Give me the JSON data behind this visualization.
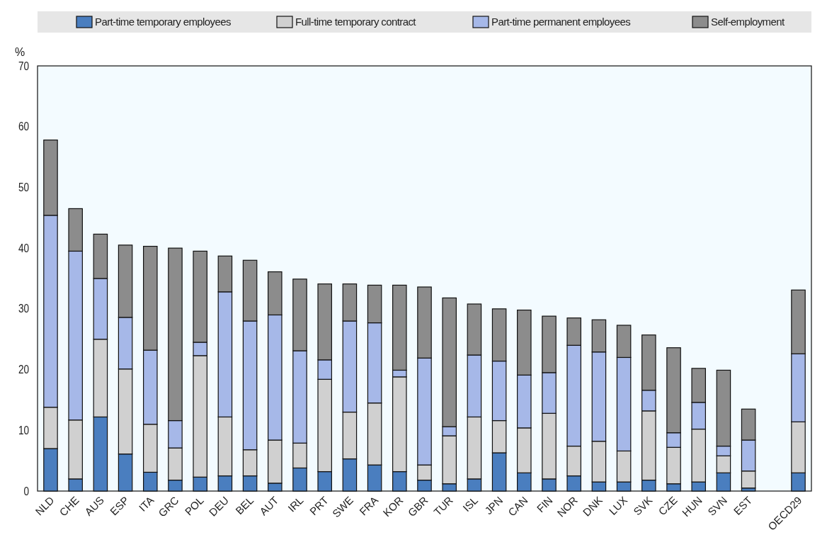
{
  "chart_data": {
    "type": "bar",
    "stacked": true,
    "ylabel": "%",
    "legend": "top",
    "grid": false,
    "categories": [
      "NLD",
      "CHE",
      "AUS",
      "ESP",
      "ITA",
      "GRC",
      "POL",
      "DEU",
      "BEL",
      "AUT",
      "IRL",
      "PRT",
      "SWE",
      "FRA",
      "KOR",
      "GBR",
      "TUR",
      "ISL",
      "JPN",
      "CAN",
      "FIN",
      "NOR",
      "DNK",
      "LUX",
      "SVK",
      "CZE",
      "HUN",
      "SVN",
      "EST",
      null,
      "OECD29"
    ],
    "ylim": [
      0,
      70
    ],
    "yticks": [
      0,
      10,
      20,
      30,
      40,
      50,
      60,
      70
    ],
    "series": [
      {
        "name": "Part-time temporary employees",
        "color": "#4a7ebf",
        "values": [
          7.0,
          2.0,
          12.2,
          6.1,
          3.1,
          1.8,
          2.3,
          2.5,
          2.5,
          1.3,
          3.8,
          3.2,
          5.3,
          4.3,
          3.2,
          1.8,
          1.2,
          2.0,
          6.3,
          3.0,
          2.0,
          2.5,
          1.5,
          1.5,
          1.8,
          1.2,
          1.5,
          3.0,
          0.5,
          null,
          3.0
        ]
      },
      {
        "name": "Full-time temporary contract",
        "color": "#d0d0d0",
        "values": [
          6.8,
          9.7,
          12.8,
          14.0,
          7.9,
          5.3,
          20.0,
          9.7,
          4.3,
          7.1,
          4.1,
          15.2,
          7.7,
          10.2,
          15.6,
          2.5,
          7.9,
          10.2,
          5.3,
          7.4,
          10.8,
          4.9,
          6.7,
          5.1,
          11.4,
          6.0,
          8.7,
          2.8,
          2.8,
          null,
          8.4
        ]
      },
      {
        "name": "Part-time permanent employees",
        "color": "#a6b8e8",
        "values": [
          31.6,
          27.8,
          10.0,
          8.5,
          12.2,
          4.5,
          2.2,
          20.6,
          21.2,
          20.6,
          15.2,
          3.2,
          15.0,
          13.2,
          1.1,
          17.6,
          1.5,
          10.2,
          9.8,
          8.7,
          6.7,
          16.6,
          14.7,
          15.4,
          3.4,
          2.4,
          4.4,
          1.6,
          5.1,
          null,
          11.2
        ]
      },
      {
        "name": "Self-employment",
        "color": "#8c8c8c",
        "values": [
          12.4,
          7.0,
          7.3,
          11.9,
          17.1,
          28.4,
          15.0,
          5.9,
          10.0,
          7.1,
          11.8,
          12.5,
          6.1,
          6.2,
          14.0,
          11.7,
          21.2,
          8.4,
          8.6,
          10.7,
          9.3,
          4.5,
          5.3,
          5.3,
          9.1,
          14.0,
          5.6,
          12.5,
          5.1,
          null,
          10.5
        ]
      }
    ]
  }
}
